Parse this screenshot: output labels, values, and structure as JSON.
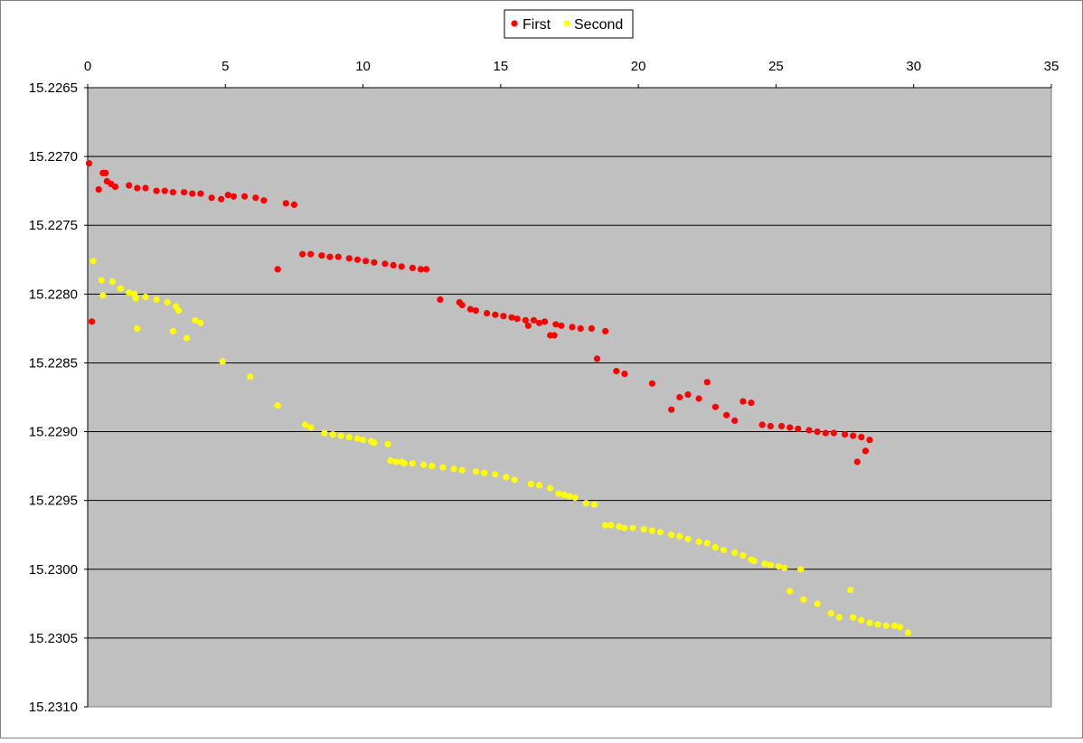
{
  "chart_data": {
    "type": "scatter",
    "title": "",
    "xlabel": "",
    "ylabel": "",
    "x_axis_position": "top",
    "y_axis_inverted": true,
    "xlim": [
      0,
      35
    ],
    "ylim": [
      15.2265,
      15.231
    ],
    "x_ticks": [
      "0",
      "5",
      "10",
      "15",
      "20",
      "25",
      "30",
      "35"
    ],
    "y_ticks": [
      "15.2265",
      "15.2270",
      "15.2275",
      "15.2280",
      "15.2285",
      "15.2290",
      "15.2295",
      "15.2300",
      "15.2305",
      "15.2310"
    ],
    "grid": "horizontal",
    "plot_background": "#c0c0c0",
    "legend": {
      "position": "top-center"
    },
    "series": [
      {
        "name": "First",
        "color": "#ff0000",
        "points": [
          [
            0.05,
            15.22705
          ],
          [
            0.15,
            15.2282
          ],
          [
            0.4,
            15.22724
          ],
          [
            0.55,
            15.22712
          ],
          [
            0.65,
            15.22712
          ],
          [
            0.7,
            15.22718
          ],
          [
            0.85,
            15.2272
          ],
          [
            1.0,
            15.22722
          ],
          [
            1.5,
            15.22721
          ],
          [
            1.8,
            15.22723
          ],
          [
            2.1,
            15.22723
          ],
          [
            2.5,
            15.22725
          ],
          [
            2.8,
            15.22725
          ],
          [
            3.1,
            15.22726
          ],
          [
            3.5,
            15.22726
          ],
          [
            3.8,
            15.22727
          ],
          [
            4.1,
            15.22727
          ],
          [
            4.5,
            15.2273
          ],
          [
            4.85,
            15.22731
          ],
          [
            5.1,
            15.22728
          ],
          [
            5.3,
            15.22729
          ],
          [
            5.7,
            15.22729
          ],
          [
            6.1,
            15.2273
          ],
          [
            6.4,
            15.22732
          ],
          [
            6.9,
            15.22782
          ],
          [
            7.2,
            15.22734
          ],
          [
            7.5,
            15.22735
          ],
          [
            7.8,
            15.22771
          ],
          [
            8.1,
            15.22771
          ],
          [
            8.5,
            15.22772
          ],
          [
            8.8,
            15.22773
          ],
          [
            9.1,
            15.22773
          ],
          [
            9.5,
            15.22774
          ],
          [
            9.8,
            15.22775
          ],
          [
            10.1,
            15.22776
          ],
          [
            10.4,
            15.22777
          ],
          [
            10.8,
            15.22778
          ],
          [
            11.1,
            15.22779
          ],
          [
            11.4,
            15.2278
          ],
          [
            11.8,
            15.22781
          ],
          [
            12.1,
            15.22782
          ],
          [
            12.3,
            15.22782
          ],
          [
            12.8,
            15.22804
          ],
          [
            13.5,
            15.22806
          ],
          [
            13.6,
            15.22808
          ],
          [
            13.9,
            15.22811
          ],
          [
            14.1,
            15.22812
          ],
          [
            14.5,
            15.22814
          ],
          [
            14.8,
            15.22815
          ],
          [
            15.1,
            15.22816
          ],
          [
            15.4,
            15.22817
          ],
          [
            15.6,
            15.22818
          ],
          [
            15.9,
            15.22819
          ],
          [
            16.0,
            15.22823
          ],
          [
            16.2,
            15.22819
          ],
          [
            16.4,
            15.22821
          ],
          [
            16.6,
            15.2282
          ],
          [
            16.8,
            15.2283
          ],
          [
            16.95,
            15.2283
          ],
          [
            17.0,
            15.22822
          ],
          [
            17.2,
            15.22823
          ],
          [
            17.6,
            15.22824
          ],
          [
            17.9,
            15.22825
          ],
          [
            18.3,
            15.22825
          ],
          [
            18.5,
            15.22847
          ],
          [
            18.8,
            15.22827
          ],
          [
            19.2,
            15.22856
          ],
          [
            19.5,
            15.22858
          ],
          [
            20.5,
            15.22865
          ],
          [
            21.2,
            15.22884
          ],
          [
            21.5,
            15.22875
          ],
          [
            21.8,
            15.22873
          ],
          [
            22.2,
            15.22876
          ],
          [
            22.5,
            15.22864
          ],
          [
            22.8,
            15.22882
          ],
          [
            23.2,
            15.22888
          ],
          [
            23.5,
            15.22892
          ],
          [
            23.8,
            15.22878
          ],
          [
            24.1,
            15.22879
          ],
          [
            24.5,
            15.22895
          ],
          [
            24.8,
            15.22896
          ],
          [
            25.2,
            15.22896
          ],
          [
            25.5,
            15.22897
          ],
          [
            25.8,
            15.22898
          ],
          [
            26.2,
            15.22899
          ],
          [
            26.5,
            15.229
          ],
          [
            26.8,
            15.22901
          ],
          [
            27.1,
            15.22901
          ],
          [
            27.5,
            15.22902
          ],
          [
            27.8,
            15.22903
          ],
          [
            27.95,
            15.22922
          ],
          [
            28.1,
            15.22904
          ],
          [
            28.25,
            15.22914
          ],
          [
            28.4,
            15.22906
          ]
        ]
      },
      {
        "name": "Second",
        "color": "#ffff00",
        "points": [
          [
            0.2,
            15.22776
          ],
          [
            0.5,
            15.2279
          ],
          [
            0.55,
            15.22801
          ],
          [
            0.9,
            15.22791
          ],
          [
            1.2,
            15.22796
          ],
          [
            1.5,
            15.22799
          ],
          [
            1.7,
            15.228
          ],
          [
            1.75,
            15.22803
          ],
          [
            1.8,
            15.22825
          ],
          [
            2.1,
            15.22802
          ],
          [
            2.5,
            15.22804
          ],
          [
            2.9,
            15.22806
          ],
          [
            3.1,
            15.22827
          ],
          [
            3.2,
            15.22809
          ],
          [
            3.3,
            15.22812
          ],
          [
            3.6,
            15.22832
          ],
          [
            3.9,
            15.22819
          ],
          [
            4.1,
            15.22821
          ],
          [
            4.9,
            15.22849
          ],
          [
            5.9,
            15.2286
          ],
          [
            6.9,
            15.22881
          ],
          [
            7.9,
            15.22895
          ],
          [
            8.1,
            15.22897
          ],
          [
            8.6,
            15.22901
          ],
          [
            8.9,
            15.22902
          ],
          [
            9.2,
            15.22903
          ],
          [
            9.5,
            15.22904
          ],
          [
            9.8,
            15.22905
          ],
          [
            10.0,
            15.22906
          ],
          [
            10.3,
            15.22907
          ],
          [
            10.4,
            15.22908
          ],
          [
            10.9,
            15.22909
          ],
          [
            11.0,
            15.22921
          ],
          [
            11.2,
            15.22922
          ],
          [
            11.4,
            15.22922
          ],
          [
            11.5,
            15.22923
          ],
          [
            11.8,
            15.22923
          ],
          [
            12.2,
            15.22924
          ],
          [
            12.5,
            15.22925
          ],
          [
            12.9,
            15.22926
          ],
          [
            13.3,
            15.22927
          ],
          [
            13.6,
            15.22928
          ],
          [
            14.1,
            15.22929
          ],
          [
            14.4,
            15.2293
          ],
          [
            14.8,
            15.22931
          ],
          [
            15.2,
            15.22933
          ],
          [
            15.5,
            15.22935
          ],
          [
            16.1,
            15.22938
          ],
          [
            16.4,
            15.22939
          ],
          [
            16.8,
            15.22941
          ],
          [
            17.1,
            15.22945
          ],
          [
            17.3,
            15.22946
          ],
          [
            17.5,
            15.22947
          ],
          [
            17.7,
            15.22948
          ],
          [
            18.1,
            15.22952
          ],
          [
            18.4,
            15.22953
          ],
          [
            18.8,
            15.22968
          ],
          [
            19.0,
            15.22968
          ],
          [
            19.3,
            15.22969
          ],
          [
            19.5,
            15.2297
          ],
          [
            19.8,
            15.2297
          ],
          [
            20.2,
            15.22971
          ],
          [
            20.5,
            15.22972
          ],
          [
            20.8,
            15.22973
          ],
          [
            21.2,
            15.22975
          ],
          [
            21.5,
            15.22976
          ],
          [
            21.8,
            15.22978
          ],
          [
            22.2,
            15.2298
          ],
          [
            22.5,
            15.22981
          ],
          [
            22.8,
            15.22984
          ],
          [
            23.1,
            15.22986
          ],
          [
            23.5,
            15.22988
          ],
          [
            23.8,
            15.2299
          ],
          [
            24.1,
            15.22993
          ],
          [
            24.2,
            15.22994
          ],
          [
            24.6,
            15.22996
          ],
          [
            24.8,
            15.22997
          ],
          [
            25.1,
            15.22998
          ],
          [
            25.3,
            15.22999
          ],
          [
            25.5,
            15.23016
          ],
          [
            25.9,
            15.23
          ],
          [
            26.0,
            15.23022
          ],
          [
            26.5,
            15.23025
          ],
          [
            27.0,
            15.23032
          ],
          [
            27.3,
            15.23035
          ],
          [
            27.7,
            15.23015
          ],
          [
            27.8,
            15.23035
          ],
          [
            28.1,
            15.23037
          ],
          [
            28.4,
            15.23039
          ],
          [
            28.7,
            15.2304
          ],
          [
            29.0,
            15.23041
          ],
          [
            29.3,
            15.23041
          ],
          [
            29.5,
            15.23042
          ],
          [
            29.8,
            15.23046
          ]
        ]
      }
    ]
  }
}
